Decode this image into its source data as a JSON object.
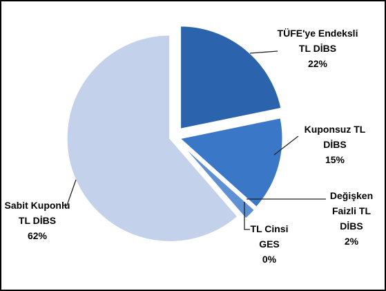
{
  "chart_data": {
    "type": "pie",
    "categories": [
      "TÜFE'ye Endeksli TL DİBS",
      "Kuponsuz TL DİBS",
      "Değişken Faizli TL DİBS",
      "TL Cinsi GES",
      "Sabit Kuponlu TL DİBS"
    ],
    "values": [
      22,
      15,
      2,
      0,
      62
    ],
    "value_labels": [
      "22%",
      "15%",
      "2%",
      "0%",
      "62%"
    ],
    "colors": [
      "#2c63ad",
      "#3a77c7",
      "#5d91d3",
      "#7fa6da",
      "#c3d2ea"
    ]
  }
}
